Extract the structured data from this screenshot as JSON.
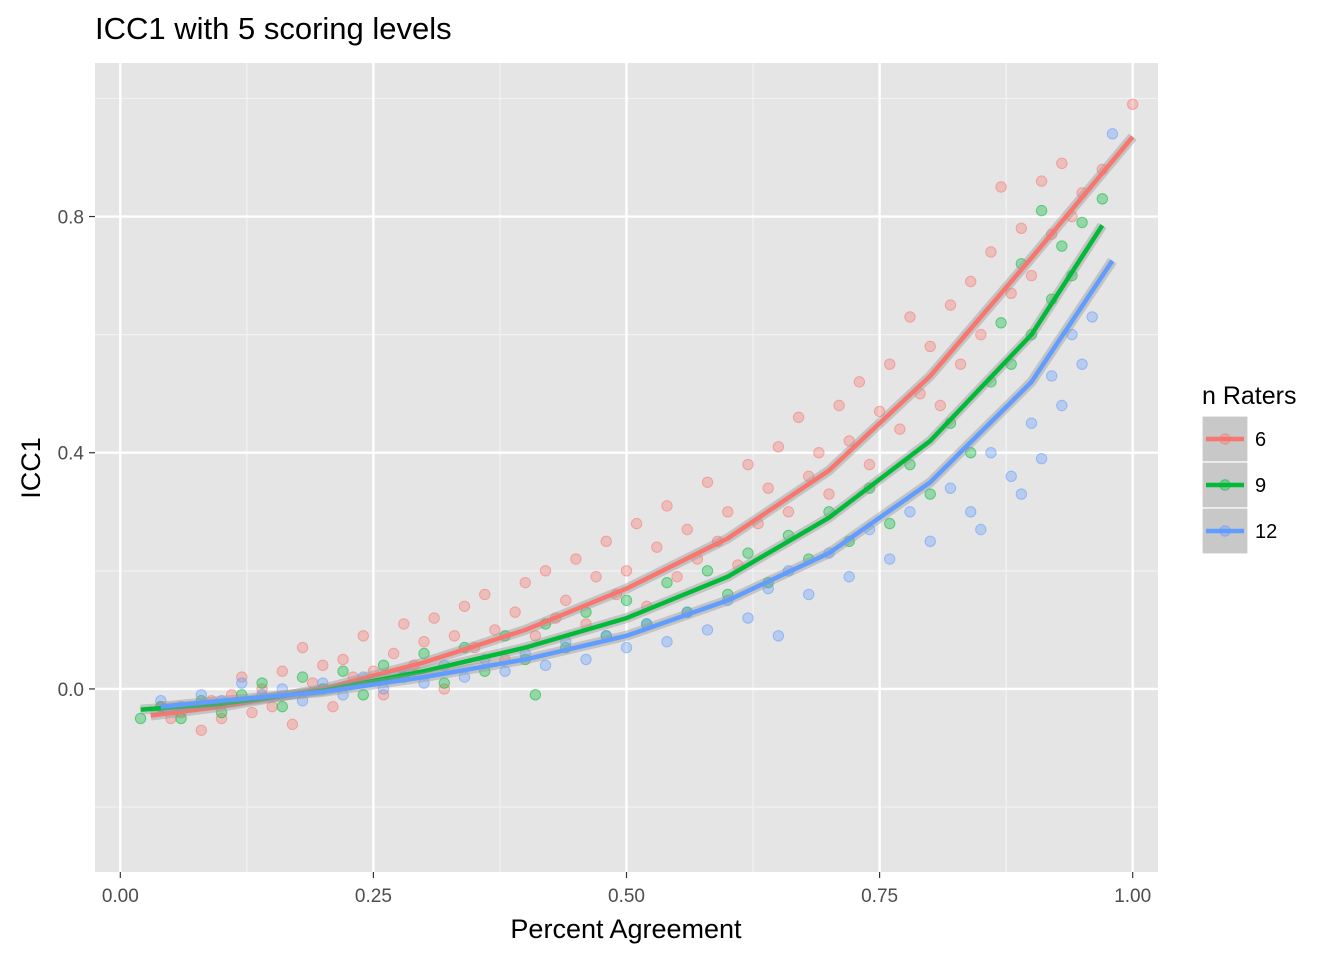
{
  "chart_data": {
    "type": "scatter",
    "title": "ICC1 with 5 scoring levels",
    "xlabel": "Percent Agreement",
    "ylabel": "ICC1",
    "xlim": [
      -0.025,
      1.025
    ],
    "ylim": [
      -0.31,
      1.06
    ],
    "x_ticks": [
      0.0,
      0.25,
      0.5,
      0.75,
      1.0
    ],
    "x_tick_labels": [
      "0.00",
      "0.25",
      "0.50",
      "0.75",
      "1.00"
    ],
    "y_ticks": [
      0.0,
      0.4,
      0.8
    ],
    "y_tick_labels": [
      "0.0",
      "0.4",
      "0.8"
    ],
    "legend_title": "n Raters",
    "legend_position": "right",
    "grid": true,
    "series": [
      {
        "name": "6",
        "color": "#F8766D",
        "trend": [
          [
            0.03,
            -0.045
          ],
          [
            0.1,
            -0.03
          ],
          [
            0.2,
            0.0
          ],
          [
            0.3,
            0.045
          ],
          [
            0.4,
            0.1
          ],
          [
            0.5,
            0.17
          ],
          [
            0.6,
            0.255
          ],
          [
            0.7,
            0.37
          ],
          [
            0.8,
            0.53
          ],
          [
            0.9,
            0.73
          ],
          [
            1.0,
            0.935
          ]
        ],
        "points": [
          [
            0.04,
            -0.03
          ],
          [
            0.05,
            -0.05
          ],
          [
            0.06,
            -0.04
          ],
          [
            0.08,
            -0.07
          ],
          [
            0.09,
            -0.02
          ],
          [
            0.1,
            -0.05
          ],
          [
            0.11,
            -0.01
          ],
          [
            0.12,
            0.02
          ],
          [
            0.13,
            -0.04
          ],
          [
            0.14,
            0.0
          ],
          [
            0.15,
            -0.03
          ],
          [
            0.16,
            0.03
          ],
          [
            0.17,
            -0.06
          ],
          [
            0.18,
            0.07
          ],
          [
            0.19,
            0.01
          ],
          [
            0.2,
            0.04
          ],
          [
            0.21,
            -0.03
          ],
          [
            0.22,
            0.05
          ],
          [
            0.23,
            0.02
          ],
          [
            0.24,
            0.09
          ],
          [
            0.25,
            0.03
          ],
          [
            0.26,
            -0.01
          ],
          [
            0.27,
            0.06
          ],
          [
            0.28,
            0.11
          ],
          [
            0.29,
            0.04
          ],
          [
            0.3,
            0.08
          ],
          [
            0.31,
            0.12
          ],
          [
            0.32,
            0.0
          ],
          [
            0.33,
            0.09
          ],
          [
            0.34,
            0.14
          ],
          [
            0.35,
            0.07
          ],
          [
            0.36,
            0.16
          ],
          [
            0.37,
            0.1
          ],
          [
            0.38,
            0.05
          ],
          [
            0.39,
            0.13
          ],
          [
            0.4,
            0.18
          ],
          [
            0.41,
            0.09
          ],
          [
            0.42,
            0.2
          ],
          [
            0.43,
            0.12
          ],
          [
            0.44,
            0.15
          ],
          [
            0.45,
            0.22
          ],
          [
            0.46,
            0.11
          ],
          [
            0.47,
            0.19
          ],
          [
            0.48,
            0.25
          ],
          [
            0.49,
            0.16
          ],
          [
            0.5,
            0.2
          ],
          [
            0.51,
            0.28
          ],
          [
            0.52,
            0.14
          ],
          [
            0.53,
            0.24
          ],
          [
            0.54,
            0.31
          ],
          [
            0.55,
            0.19
          ],
          [
            0.56,
            0.27
          ],
          [
            0.57,
            0.22
          ],
          [
            0.58,
            0.35
          ],
          [
            0.59,
            0.25
          ],
          [
            0.6,
            0.3
          ],
          [
            0.61,
            0.21
          ],
          [
            0.62,
            0.38
          ],
          [
            0.63,
            0.28
          ],
          [
            0.64,
            0.34
          ],
          [
            0.65,
            0.41
          ],
          [
            0.66,
            0.3
          ],
          [
            0.67,
            0.46
          ],
          [
            0.68,
            0.36
          ],
          [
            0.69,
            0.4
          ],
          [
            0.7,
            0.33
          ],
          [
            0.71,
            0.48
          ],
          [
            0.72,
            0.42
          ],
          [
            0.73,
            0.52
          ],
          [
            0.74,
            0.38
          ],
          [
            0.75,
            0.47
          ],
          [
            0.76,
            0.55
          ],
          [
            0.77,
            0.44
          ],
          [
            0.78,
            0.63
          ],
          [
            0.79,
            0.5
          ],
          [
            0.8,
            0.58
          ],
          [
            0.81,
            0.48
          ],
          [
            0.82,
            0.65
          ],
          [
            0.83,
            0.55
          ],
          [
            0.84,
            0.69
          ],
          [
            0.85,
            0.6
          ],
          [
            0.86,
            0.74
          ],
          [
            0.87,
            0.85
          ],
          [
            0.88,
            0.67
          ],
          [
            0.89,
            0.78
          ],
          [
            0.9,
            0.7
          ],
          [
            0.91,
            0.86
          ],
          [
            0.92,
            0.77
          ],
          [
            0.93,
            0.89
          ],
          [
            0.94,
            0.8
          ],
          [
            0.95,
            0.84
          ],
          [
            0.97,
            0.88
          ],
          [
            1.0,
            0.99
          ]
        ]
      },
      {
        "name": "9",
        "color": "#00BA38",
        "trend": [
          [
            0.02,
            -0.035
          ],
          [
            0.1,
            -0.025
          ],
          [
            0.2,
            -0.003
          ],
          [
            0.3,
            0.03
          ],
          [
            0.4,
            0.07
          ],
          [
            0.5,
            0.12
          ],
          [
            0.6,
            0.19
          ],
          [
            0.7,
            0.29
          ],
          [
            0.8,
            0.42
          ],
          [
            0.9,
            0.6
          ],
          [
            0.97,
            0.785
          ]
        ],
        "points": [
          [
            0.02,
            -0.05
          ],
          [
            0.04,
            -0.03
          ],
          [
            0.06,
            -0.05
          ],
          [
            0.08,
            -0.02
          ],
          [
            0.1,
            -0.04
          ],
          [
            0.12,
            -0.01
          ],
          [
            0.14,
            0.01
          ],
          [
            0.16,
            -0.03
          ],
          [
            0.18,
            0.02
          ],
          [
            0.2,
            0.0
          ],
          [
            0.22,
            0.03
          ],
          [
            0.24,
            -0.01
          ],
          [
            0.26,
            0.04
          ],
          [
            0.28,
            0.02
          ],
          [
            0.3,
            0.06
          ],
          [
            0.32,
            0.01
          ],
          [
            0.34,
            0.07
          ],
          [
            0.36,
            0.03
          ],
          [
            0.38,
            0.09
          ],
          [
            0.4,
            0.05
          ],
          [
            0.41,
            -0.01
          ],
          [
            0.42,
            0.11
          ],
          [
            0.44,
            0.07
          ],
          [
            0.46,
            0.13
          ],
          [
            0.48,
            0.09
          ],
          [
            0.5,
            0.15
          ],
          [
            0.52,
            0.11
          ],
          [
            0.54,
            0.18
          ],
          [
            0.56,
            0.13
          ],
          [
            0.58,
            0.2
          ],
          [
            0.6,
            0.16
          ],
          [
            0.62,
            0.23
          ],
          [
            0.64,
            0.18
          ],
          [
            0.66,
            0.26
          ],
          [
            0.68,
            0.22
          ],
          [
            0.7,
            0.3
          ],
          [
            0.72,
            0.25
          ],
          [
            0.74,
            0.34
          ],
          [
            0.76,
            0.28
          ],
          [
            0.78,
            0.38
          ],
          [
            0.8,
            0.33
          ],
          [
            0.82,
            0.45
          ],
          [
            0.84,
            0.4
          ],
          [
            0.86,
            0.52
          ],
          [
            0.87,
            0.62
          ],
          [
            0.88,
            0.55
          ],
          [
            0.89,
            0.72
          ],
          [
            0.9,
            0.6
          ],
          [
            0.91,
            0.81
          ],
          [
            0.92,
            0.66
          ],
          [
            0.93,
            0.75
          ],
          [
            0.94,
            0.7
          ],
          [
            0.95,
            0.79
          ],
          [
            0.97,
            0.83
          ]
        ]
      },
      {
        "name": "12",
        "color": "#619CFF",
        "trend": [
          [
            0.04,
            -0.03
          ],
          [
            0.1,
            -0.02
          ],
          [
            0.2,
            -0.005
          ],
          [
            0.3,
            0.02
          ],
          [
            0.4,
            0.05
          ],
          [
            0.5,
            0.09
          ],
          [
            0.6,
            0.15
          ],
          [
            0.7,
            0.23
          ],
          [
            0.8,
            0.35
          ],
          [
            0.9,
            0.52
          ],
          [
            0.98,
            0.725
          ]
        ],
        "points": [
          [
            0.04,
            -0.02
          ],
          [
            0.06,
            -0.03
          ],
          [
            0.08,
            -0.01
          ],
          [
            0.1,
            -0.02
          ],
          [
            0.12,
            0.01
          ],
          [
            0.14,
            -0.01
          ],
          [
            0.16,
            0.0
          ],
          [
            0.18,
            -0.02
          ],
          [
            0.2,
            0.01
          ],
          [
            0.22,
            -0.01
          ],
          [
            0.24,
            0.02
          ],
          [
            0.26,
            0.0
          ],
          [
            0.28,
            0.03
          ],
          [
            0.3,
            0.01
          ],
          [
            0.32,
            0.04
          ],
          [
            0.34,
            0.02
          ],
          [
            0.36,
            0.05
          ],
          [
            0.38,
            0.03
          ],
          [
            0.4,
            0.06
          ],
          [
            0.42,
            0.04
          ],
          [
            0.44,
            0.08
          ],
          [
            0.46,
            0.05
          ],
          [
            0.48,
            0.09
          ],
          [
            0.5,
            0.07
          ],
          [
            0.52,
            0.11
          ],
          [
            0.54,
            0.08
          ],
          [
            0.56,
            0.13
          ],
          [
            0.58,
            0.1
          ],
          [
            0.6,
            0.15
          ],
          [
            0.62,
            0.12
          ],
          [
            0.64,
            0.17
          ],
          [
            0.65,
            0.09
          ],
          [
            0.66,
            0.2
          ],
          [
            0.68,
            0.16
          ],
          [
            0.7,
            0.23
          ],
          [
            0.72,
            0.19
          ],
          [
            0.74,
            0.27
          ],
          [
            0.76,
            0.22
          ],
          [
            0.78,
            0.3
          ],
          [
            0.8,
            0.25
          ],
          [
            0.82,
            0.34
          ],
          [
            0.84,
            0.3
          ],
          [
            0.85,
            0.27
          ],
          [
            0.86,
            0.4
          ],
          [
            0.88,
            0.36
          ],
          [
            0.89,
            0.33
          ],
          [
            0.9,
            0.45
          ],
          [
            0.91,
            0.39
          ],
          [
            0.92,
            0.53
          ],
          [
            0.93,
            0.48
          ],
          [
            0.94,
            0.6
          ],
          [
            0.95,
            0.55
          ],
          [
            0.96,
            0.63
          ],
          [
            0.98,
            0.94
          ]
        ]
      }
    ]
  }
}
